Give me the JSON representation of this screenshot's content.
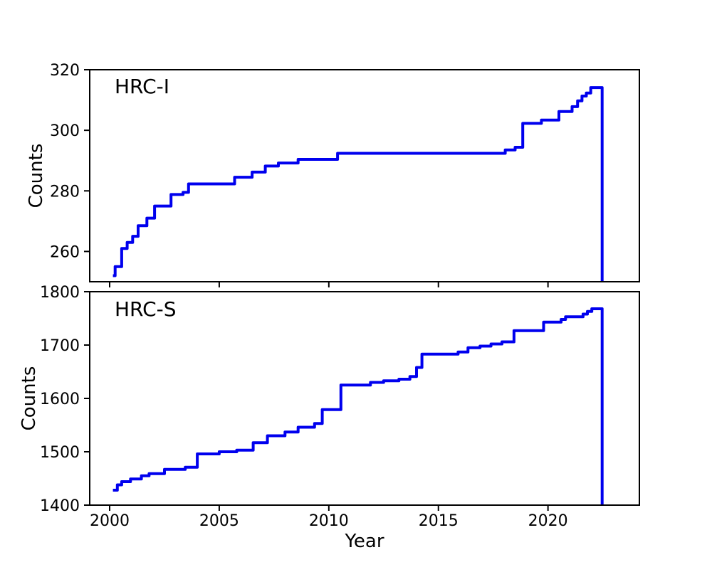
{
  "figure": {
    "background_color": "#ffffff",
    "axis_color": "#000000",
    "text_color": "#000000",
    "line_color": "#0000ee"
  },
  "chart_data": [
    {
      "type": "line",
      "label": "HRC-I",
      "ylabel": "Counts",
      "xlabel": "",
      "line_color": "#0000ee",
      "line_style": "step",
      "grid": false,
      "legend": "none",
      "ylim": [
        250,
        320
      ],
      "yticks": [
        260,
        280,
        300,
        320
      ],
      "xlim": [
        1999.09,
        2024.17
      ],
      "xticks": [
        2000,
        2005,
        2010,
        2015,
        2020
      ],
      "x_tick_labels_visible": false,
      "series": [
        {
          "name": "HRC-I",
          "step_points": [
            [
              2000.15,
              252
            ],
            [
              2000.25,
              255
            ],
            [
              2000.55,
              261
            ],
            [
              2000.8,
              263
            ],
            [
              2001.05,
              265
            ],
            [
              2001.3,
              268.5
            ],
            [
              2001.7,
              271
            ],
            [
              2002.05,
              275
            ],
            [
              2002.8,
              278.8
            ],
            [
              2003.35,
              279.5
            ],
            [
              2003.6,
              282.3
            ],
            [
              2005.7,
              284.5
            ],
            [
              2006.5,
              286.2
            ],
            [
              2007.1,
              288.2
            ],
            [
              2007.7,
              289.2
            ],
            [
              2008.6,
              290.4
            ],
            [
              2010.4,
              292.4
            ],
            [
              2018.05,
              293.5
            ],
            [
              2018.5,
              294.4
            ],
            [
              2018.85,
              302.3
            ],
            [
              2019.7,
              303.4
            ],
            [
              2020.5,
              306.2
            ],
            [
              2021.1,
              307.8
            ],
            [
              2021.35,
              309.7
            ],
            [
              2021.55,
              311.3
            ],
            [
              2021.75,
              312.3
            ],
            [
              2021.95,
              314.1
            ],
            [
              2022.47,
              250
            ]
          ]
        }
      ]
    },
    {
      "type": "line",
      "label": "HRC-S",
      "ylabel": "Counts",
      "xlabel": "Year",
      "line_color": "#0000ee",
      "line_style": "step",
      "grid": false,
      "legend": "none",
      "ylim": [
        1400,
        1800
      ],
      "yticks": [
        1400,
        1500,
        1600,
        1700,
        1800
      ],
      "xlim": [
        1999.09,
        2024.17
      ],
      "xticks": [
        2000,
        2005,
        2010,
        2015,
        2020
      ],
      "x_tick_labels_visible": true,
      "series": [
        {
          "name": "HRC-S",
          "step_points": [
            [
              2000.15,
              1428
            ],
            [
              2000.35,
              1438
            ],
            [
              2000.55,
              1444
            ],
            [
              2000.95,
              1449
            ],
            [
              2001.45,
              1455
            ],
            [
              2001.8,
              1459
            ],
            [
              2002.5,
              1467
            ],
            [
              2003.45,
              1471
            ],
            [
              2004.0,
              1496
            ],
            [
              2005.0,
              1500
            ],
            [
              2005.8,
              1503
            ],
            [
              2006.55,
              1517
            ],
            [
              2007.2,
              1530
            ],
            [
              2008.0,
              1537
            ],
            [
              2008.6,
              1546
            ],
            [
              2009.35,
              1553
            ],
            [
              2009.7,
              1579
            ],
            [
              2010.55,
              1625
            ],
            [
              2011.9,
              1630
            ],
            [
              2012.5,
              1633
            ],
            [
              2013.2,
              1636
            ],
            [
              2013.7,
              1641
            ],
            [
              2014.0,
              1658
            ],
            [
              2014.25,
              1683
            ],
            [
              2015.9,
              1687
            ],
            [
              2016.35,
              1695
            ],
            [
              2016.9,
              1698
            ],
            [
              2017.4,
              1702
            ],
            [
              2017.9,
              1706
            ],
            [
              2018.45,
              1727
            ],
            [
              2019.8,
              1743
            ],
            [
              2020.6,
              1748
            ],
            [
              2020.8,
              1753
            ],
            [
              2021.6,
              1758
            ],
            [
              2021.8,
              1763
            ],
            [
              2022.0,
              1768
            ],
            [
              2022.47,
              1400
            ]
          ]
        }
      ]
    }
  ]
}
